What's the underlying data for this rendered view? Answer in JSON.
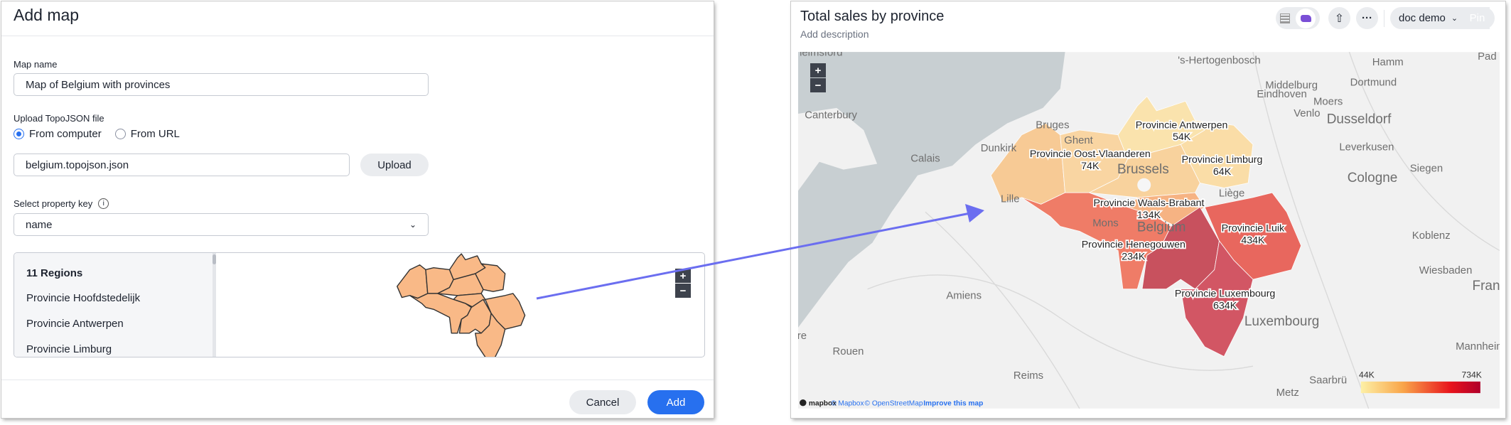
{
  "dialog": {
    "title": "Add map",
    "map_name_label": "Map name",
    "map_name_value": "Map of Belgium with provinces",
    "upload_label": "Upload TopoJSON file",
    "radio_options": [
      {
        "label": "From computer",
        "selected": true
      },
      {
        "label": "From URL",
        "selected": false
      }
    ],
    "file_value": "belgium.topojson.json",
    "upload_button": "Upload",
    "property_key_label": "Select property key",
    "property_key_value": "name",
    "regions_header": "11 Regions",
    "regions": [
      "Provincie Hoofdstedelijk",
      "Provincie Antwerpen",
      "Provincie Limburg"
    ],
    "preview_fill": "#f9b987",
    "zoom_in": "+",
    "zoom_out": "−",
    "cancel_button": "Cancel",
    "add_button": "Add"
  },
  "viz": {
    "title": "Total sales by province",
    "description_placeholder": "Add description",
    "toolbar": {
      "table_icon": "table-icon",
      "map_icon": "map-icon",
      "share_icon": "share-icon",
      "more_icon": "more-icon",
      "more_label": "···",
      "liveboard": "doc demo",
      "pin_button": "Pin"
    },
    "map": {
      "zoom_in": "+",
      "zoom_out": "−",
      "provinces": [
        {
          "name": "Provincie Antwerpen",
          "value": "54K",
          "color": "#fbe2a6"
        },
        {
          "name": "Provincie Oost-Vlaanderen",
          "value": "74K",
          "color": "#fad39a"
        },
        {
          "name": "Provincie Limburg",
          "value": "64K",
          "color": "#fbdb9f"
        },
        {
          "name": "Provincie Waals-Brabant",
          "value": "134K",
          "color": "#f7ad78"
        },
        {
          "name": "Provincie Henegouwen",
          "value": "234K",
          "color": "#ef7059"
        },
        {
          "name": "Provincie Luik",
          "value": "434K",
          "color": "#e8594f"
        },
        {
          "name": "Provincie Luxembourg",
          "value": "634K",
          "color": "#cf4655"
        }
      ],
      "other_region_colors": {
        "west": "#f8c68c",
        "vlaams_brabant": "#f9cf94",
        "namur": "#c4404f"
      },
      "cities": [
        "helmsford",
        "'s-Hertogenbosch",
        "Hamm",
        "Pad",
        "Middelburg",
        "Eindhoven",
        "Dortmund",
        "Canterbury",
        "Moers",
        "Venlo",
        "Dusseldorf",
        "Bruges",
        "Ghent",
        "Dunkirk",
        "Calais",
        "Brussels",
        "Leverkusen",
        "Siegen",
        "Cologne",
        "Lille",
        "Liège",
        "Mons",
        "Belgium",
        "Koblenz",
        "Wiesbaden",
        "Fran",
        "Amiens",
        "Luxembourg",
        "Rouen",
        "Mannheim",
        "Reims",
        "Saarbrü",
        "Metz",
        "re"
      ],
      "legend": {
        "min": "44K",
        "max": "734K",
        "colors": [
          "#fdf0a6",
          "#f9a64a",
          "#e8141c",
          "#b0002a"
        ]
      },
      "attribution": {
        "logo": "mapbox",
        "mapbox": "© Mapbox",
        "osm": "© OpenStreetMap",
        "improve": "Improve this map"
      }
    }
  }
}
